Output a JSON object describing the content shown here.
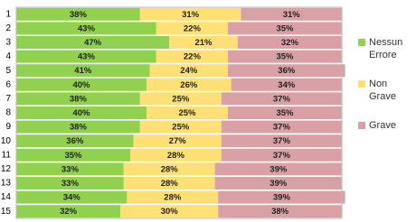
{
  "chart_data": {
    "type": "stacked-bar-horizontal",
    "categories": [
      "1",
      "2",
      "3",
      "4",
      "5",
      "6",
      "7",
      "8",
      "9",
      "10",
      "11",
      "12",
      "13",
      "14",
      "15"
    ],
    "series": [
      {
        "name": "Nessun Errore",
        "color": "#92d050",
        "values": [
          38,
          43,
          47,
          43,
          41,
          40,
          38,
          40,
          38,
          36,
          35,
          33,
          33,
          34,
          32
        ],
        "value_labels": [
          "38%",
          "43%",
          "47%",
          "43%",
          "41%",
          "40%",
          "38%",
          "40%",
          "38%",
          "36%",
          "35%",
          "33%",
          "33%",
          "34%",
          "32%"
        ]
      },
      {
        "name": "Non Grave",
        "color": "#ffe074",
        "values": [
          31,
          22,
          21,
          22,
          24,
          26,
          25,
          25,
          25,
          27,
          28,
          28,
          28,
          28,
          30
        ],
        "value_labels": [
          "31%",
          "22%",
          "21%",
          "22%",
          "24%",
          "26%",
          "25%",
          "25%",
          "25%",
          "27%",
          "28%",
          "28%",
          "28%",
          "28%",
          "30%"
        ]
      },
      {
        "name": "Grave",
        "color": "#d9a1a6",
        "values": [
          31,
          35,
          32,
          35,
          36,
          34,
          37,
          35,
          37,
          37,
          37,
          39,
          39,
          39,
          38
        ],
        "value_labels": [
          "31%",
          "35%",
          "32%",
          "35%",
          "36%",
          "34%",
          "37%",
          "35%",
          "37%",
          "37%",
          "37%",
          "39%",
          "39%",
          "39%",
          "38%"
        ]
      }
    ],
    "legend": "right"
  }
}
